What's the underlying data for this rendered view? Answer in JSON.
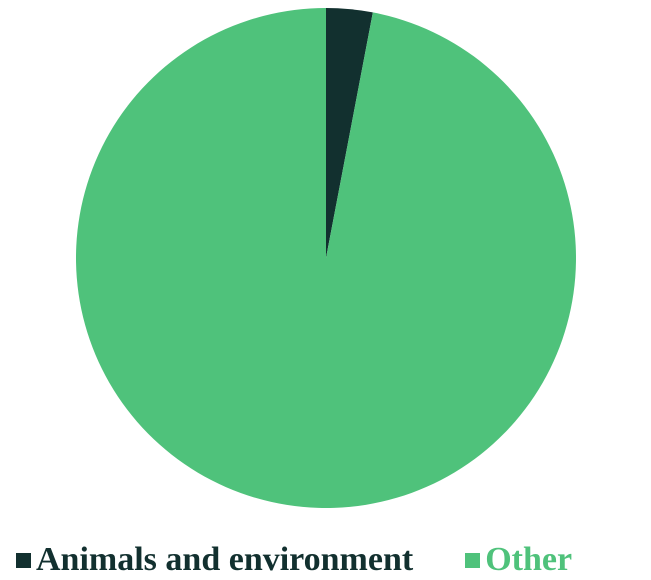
{
  "chart_data": {
    "type": "pie",
    "slices": [
      {
        "label": "Animals and environment",
        "value": 3.0,
        "color": "#12302f"
      },
      {
        "label": "Other",
        "value": 97.0,
        "color": "#4fc27b"
      }
    ],
    "start_angle_deg": 0,
    "direction": "clockwise",
    "legend_position": "bottom"
  }
}
